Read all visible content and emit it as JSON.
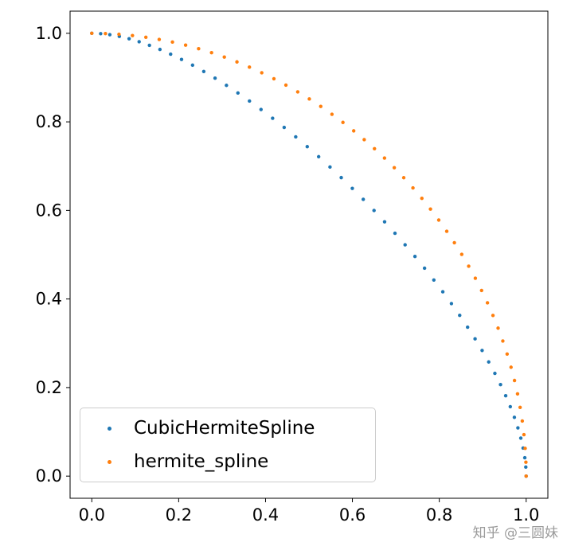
{
  "chart_data": {
    "type": "scatter",
    "title": "",
    "xlabel": "",
    "ylabel": "",
    "xlim": [
      -0.05,
      1.05
    ],
    "ylim": [
      -0.05,
      1.05
    ],
    "xticks": [
      0.0,
      0.2,
      0.4,
      0.6,
      0.8,
      1.0
    ],
    "yticks": [
      0.0,
      0.2,
      0.4,
      0.6,
      0.8,
      1.0
    ],
    "xtick_labels": [
      "0.0",
      "0.2",
      "0.4",
      "0.6",
      "0.8",
      "1.0"
    ],
    "ytick_labels": [
      "0.0",
      "0.2",
      "0.4",
      "0.6",
      "0.8",
      "1.0"
    ],
    "grid": false,
    "legend_position": "lower left",
    "marker_size": 2.2,
    "series": [
      {
        "name": "CubicHermiteSpline",
        "color": "#1f77b4",
        "points": [
          [
            0.0,
            1.0
          ],
          [
            0.0204,
            0.9992
          ],
          [
            0.0415,
            0.9969
          ],
          [
            0.0634,
            0.993
          ],
          [
            0.0859,
            0.9877
          ],
          [
            0.109,
            0.981
          ],
          [
            0.1327,
            0.9729
          ],
          [
            0.1569,
            0.9635
          ],
          [
            0.1815,
            0.9529
          ],
          [
            0.2066,
            0.941
          ],
          [
            0.232,
            0.928
          ],
          [
            0.2578,
            0.9138
          ],
          [
            0.2838,
            0.8986
          ],
          [
            0.31,
            0.8824
          ],
          [
            0.3364,
            0.8652
          ],
          [
            0.363,
            0.847
          ],
          [
            0.3896,
            0.828
          ],
          [
            0.4163,
            0.8081
          ],
          [
            0.4429,
            0.7875
          ],
          [
            0.4695,
            0.7661
          ],
          [
            0.496,
            0.744
          ],
          [
            0.5223,
            0.7213
          ],
          [
            0.5484,
            0.698
          ],
          [
            0.5743,
            0.6741
          ],
          [
            0.5998,
            0.6498
          ],
          [
            0.625,
            0.625
          ],
          [
            0.6498,
            0.5998
          ],
          [
            0.6741,
            0.5743
          ],
          [
            0.698,
            0.5484
          ],
          [
            0.7213,
            0.5223
          ],
          [
            0.744,
            0.496
          ],
          [
            0.7661,
            0.4695
          ],
          [
            0.7875,
            0.4429
          ],
          [
            0.8081,
            0.4163
          ],
          [
            0.828,
            0.3896
          ],
          [
            0.847,
            0.363
          ],
          [
            0.8652,
            0.3364
          ],
          [
            0.8824,
            0.31
          ],
          [
            0.8986,
            0.2838
          ],
          [
            0.9138,
            0.2578
          ],
          [
            0.928,
            0.232
          ],
          [
            0.941,
            0.2066
          ],
          [
            0.9529,
            0.1815
          ],
          [
            0.9635,
            0.1569
          ],
          [
            0.9729,
            0.1327
          ],
          [
            0.981,
            0.109
          ],
          [
            0.9877,
            0.0859
          ],
          [
            0.993,
            0.0634
          ],
          [
            0.9969,
            0.0415
          ],
          [
            0.9992,
            0.0204
          ],
          [
            1.0,
            0.0
          ]
        ]
      },
      {
        "name": "hermite_spline",
        "color": "#ff7f0e",
        "points": [
          [
            0.0,
            1.0
          ],
          [
            0.0314,
            0.9994
          ],
          [
            0.0626,
            0.9977
          ],
          [
            0.0936,
            0.9949
          ],
          [
            0.1245,
            0.9911
          ],
          [
            0.1552,
            0.9861
          ],
          [
            0.1857,
            0.9802
          ],
          [
            0.216,
            0.9732
          ],
          [
            0.2459,
            0.9652
          ],
          [
            0.2757,
            0.9562
          ],
          [
            0.3051,
            0.9463
          ],
          [
            0.3342,
            0.9354
          ],
          [
            0.3629,
            0.9236
          ],
          [
            0.3913,
            0.9109
          ],
          [
            0.4193,
            0.8974
          ],
          [
            0.4469,
            0.883
          ],
          [
            0.4741,
            0.8677
          ],
          [
            0.5008,
            0.8517
          ],
          [
            0.5271,
            0.8348
          ],
          [
            0.5529,
            0.8172
          ],
          [
            0.5782,
            0.7988
          ],
          [
            0.603,
            0.7797
          ],
          [
            0.6272,
            0.7599
          ],
          [
            0.6508,
            0.7394
          ],
          [
            0.6739,
            0.7182
          ],
          [
            0.6964,
            0.6964
          ],
          [
            0.7182,
            0.6739
          ],
          [
            0.7394,
            0.6508
          ],
          [
            0.7599,
            0.6272
          ],
          [
            0.7797,
            0.603
          ],
          [
            0.7988,
            0.5782
          ],
          [
            0.8172,
            0.5529
          ],
          [
            0.8348,
            0.5271
          ],
          [
            0.8517,
            0.5008
          ],
          [
            0.8677,
            0.4741
          ],
          [
            0.883,
            0.4469
          ],
          [
            0.8974,
            0.4193
          ],
          [
            0.9109,
            0.3913
          ],
          [
            0.9236,
            0.3629
          ],
          [
            0.9354,
            0.3342
          ],
          [
            0.9463,
            0.3051
          ],
          [
            0.9562,
            0.2757
          ],
          [
            0.9652,
            0.2459
          ],
          [
            0.9732,
            0.216
          ],
          [
            0.9802,
            0.1857
          ],
          [
            0.9861,
            0.1552
          ],
          [
            0.9911,
            0.1245
          ],
          [
            0.9949,
            0.0936
          ],
          [
            0.9977,
            0.0626
          ],
          [
            0.9994,
            0.0314
          ],
          [
            1.0,
            0.0
          ]
        ]
      }
    ]
  },
  "colors": {
    "spine": "#000000",
    "tick_label": "#000000",
    "legend_border": "#cccccc"
  },
  "watermark": {
    "text": "知乎 @三圆妹",
    "color": "#9b9b9b"
  }
}
